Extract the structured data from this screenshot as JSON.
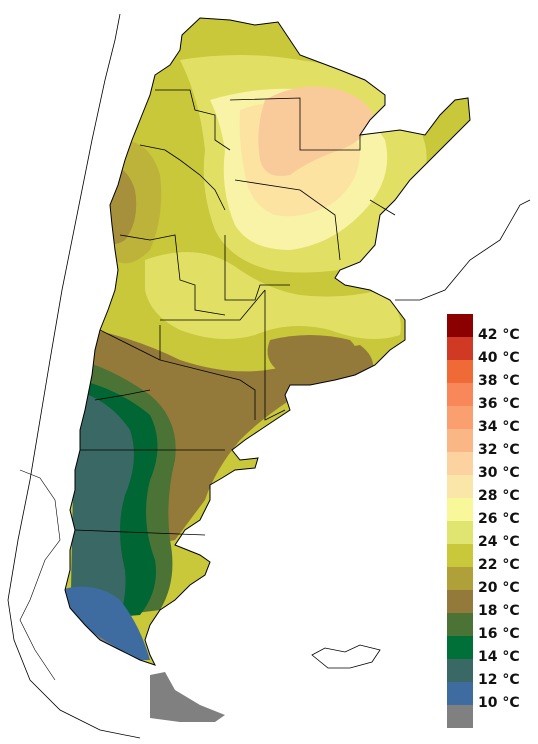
{
  "map": {
    "region": "Argentina",
    "colors": {
      "c10": "#808080",
      "c12": "#3E6BA0",
      "c14": "#3A6864",
      "c16": "#006633",
      "c18": "#4A7335",
      "c20": "#947A3A",
      "c22": "#B5A33C",
      "c24": "#C8C83A",
      "c26": "#E1E064",
      "c28": "#F8F3A6",
      "c30": "#FCE3A2",
      "c32": "#FACB9A"
    }
  },
  "legend": {
    "items": [
      {
        "label": "42 °C",
        "color": "#8B0000"
      },
      {
        "label": "40 °C",
        "color": "#D03A24"
      },
      {
        "label": "38 °C",
        "color": "#F06A38"
      },
      {
        "label": "36 °C",
        "color": "#F8885A"
      },
      {
        "label": "34 °C",
        "color": "#FAA070"
      },
      {
        "label": "32 °C",
        "color": "#FAB684"
      },
      {
        "label": "30 °C",
        "color": "#FCD2A0"
      },
      {
        "label": "28 °C",
        "color": "#FAE6A8"
      },
      {
        "label": "26 °C",
        "color": "#F8F89A"
      },
      {
        "label": "24 °C",
        "color": "#E0E470"
      },
      {
        "label": "22 °C",
        "color": "#C8C83A"
      },
      {
        "label": "20 °C",
        "color": "#B0A03A"
      },
      {
        "label": "18 °C",
        "color": "#947A3A"
      },
      {
        "label": "16 °C",
        "color": "#4A7335"
      },
      {
        "label": "14 °C",
        "color": "#007038"
      },
      {
        "label": "12 °C",
        "color": "#3A6864"
      },
      {
        "label": "10 °C",
        "color": "#3E6BA0"
      },
      {
        "label": "",
        "color": "#808080"
      }
    ]
  }
}
